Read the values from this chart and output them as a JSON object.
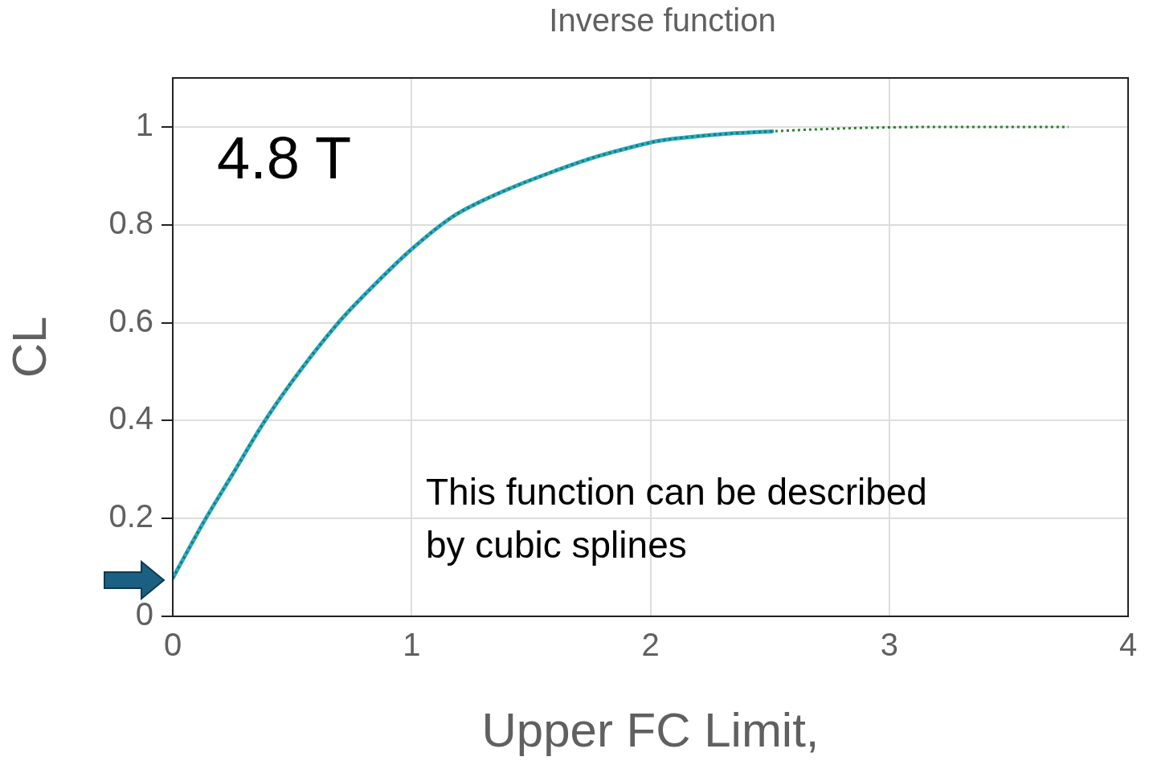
{
  "chart_data": {
    "type": "line",
    "title": "Inverse function",
    "xlabel": "Upper FC Limit,",
    "ylabel": "CL",
    "annotations": [
      "4.8 T",
      "This function can be described by cubic splines"
    ],
    "xlim": [
      0,
      4
    ],
    "xticks": [
      0,
      1,
      2,
      3,
      4
    ],
    "ylim": [
      0,
      1.1
    ],
    "yticks": [
      0,
      0.2,
      0.4,
      0.6,
      0.8,
      1
    ],
    "grid": true,
    "legend": false,
    "marker": "none",
    "series": [
      {
        "color": "#2e7d32",
        "line_style": "dotted",
        "x": [
          0,
          0.13,
          0.25,
          0.38,
          0.5,
          0.69,
          0.85,
          1.0,
          1.17,
          1.3,
          1.44,
          1.6,
          1.74,
          1.9,
          2.04,
          2.2,
          2.35,
          2.51,
          2.75,
          3.0,
          3.25,
          3.5,
          3.75
        ],
        "values": [
          0.078,
          0.193,
          0.29,
          0.395,
          0.48,
          0.598,
          0.68,
          0.75,
          0.816,
          0.85,
          0.88,
          0.91,
          0.934,
          0.956,
          0.972,
          0.981,
          0.987,
          0.991,
          0.996,
          0.999,
          1.0,
          1.0,
          1.0
        ]
      },
      {
        "color": "#26a9d9",
        "line_style": "solid",
        "x": [
          0,
          0.13,
          0.25,
          0.38,
          0.5,
          0.69,
          0.85,
          1.0,
          1.17,
          1.3,
          1.44,
          1.6,
          1.74,
          1.9,
          2.04,
          2.2,
          2.35,
          2.51
        ],
        "values": [
          0.078,
          0.193,
          0.29,
          0.395,
          0.48,
          0.598,
          0.68,
          0.75,
          0.816,
          0.85,
          0.88,
          0.91,
          0.934,
          0.956,
          0.972,
          0.981,
          0.987,
          0.991
        ]
      }
    ]
  }
}
